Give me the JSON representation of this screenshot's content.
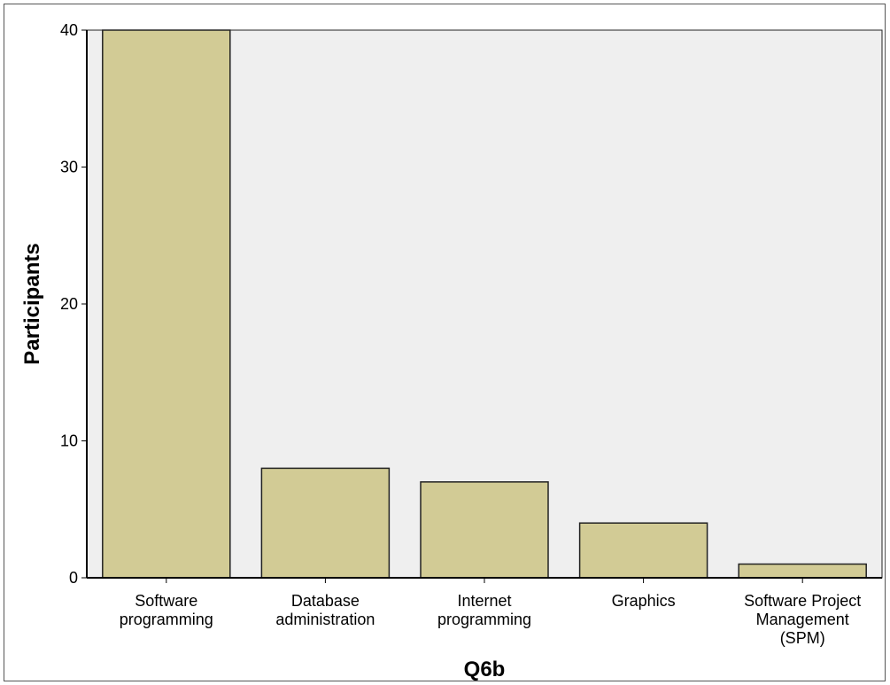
{
  "chart_data": {
    "type": "bar",
    "categories": [
      [
        "Software",
        "programming"
      ],
      [
        "Database",
        "administration"
      ],
      [
        "Internet",
        "programming"
      ],
      [
        "Graphics"
      ],
      [
        "Software Project",
        "Management",
        "(SPM)"
      ]
    ],
    "values": [
      40,
      8,
      7,
      4,
      1
    ],
    "xlabel": "Q6b",
    "ylabel": "Participants",
    "ylim": [
      0,
      40
    ],
    "yticks": [
      0,
      10,
      20,
      30,
      40
    ],
    "grid": false,
    "colors": {
      "bar_fill": "#d2cb95",
      "bar_stroke": "#222222",
      "plot_background": "#efefef"
    }
  }
}
